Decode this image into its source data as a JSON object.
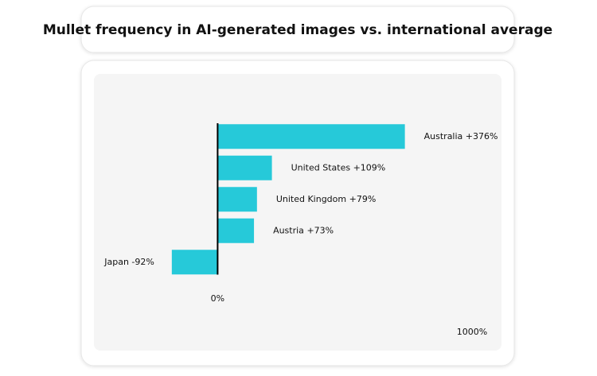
{
  "chart_data": {
    "type": "hbar",
    "title": "Mullet frequency in AI-generated images vs. international average",
    "categories": [
      "Australia",
      "United States",
      "United Kingdom",
      "Austria",
      "Japan"
    ],
    "values": [
      376,
      109,
      79,
      73,
      -92
    ],
    "value_labels": [
      "+376%",
      "+109%",
      "+79%",
      "+73%",
      "-92%"
    ],
    "color": "#26c9d9",
    "xlim": [
      -250,
      570
    ],
    "xticks": [
      {
        "value": 0,
        "label": "0%"
      }
    ],
    "annotation": "1000%"
  }
}
